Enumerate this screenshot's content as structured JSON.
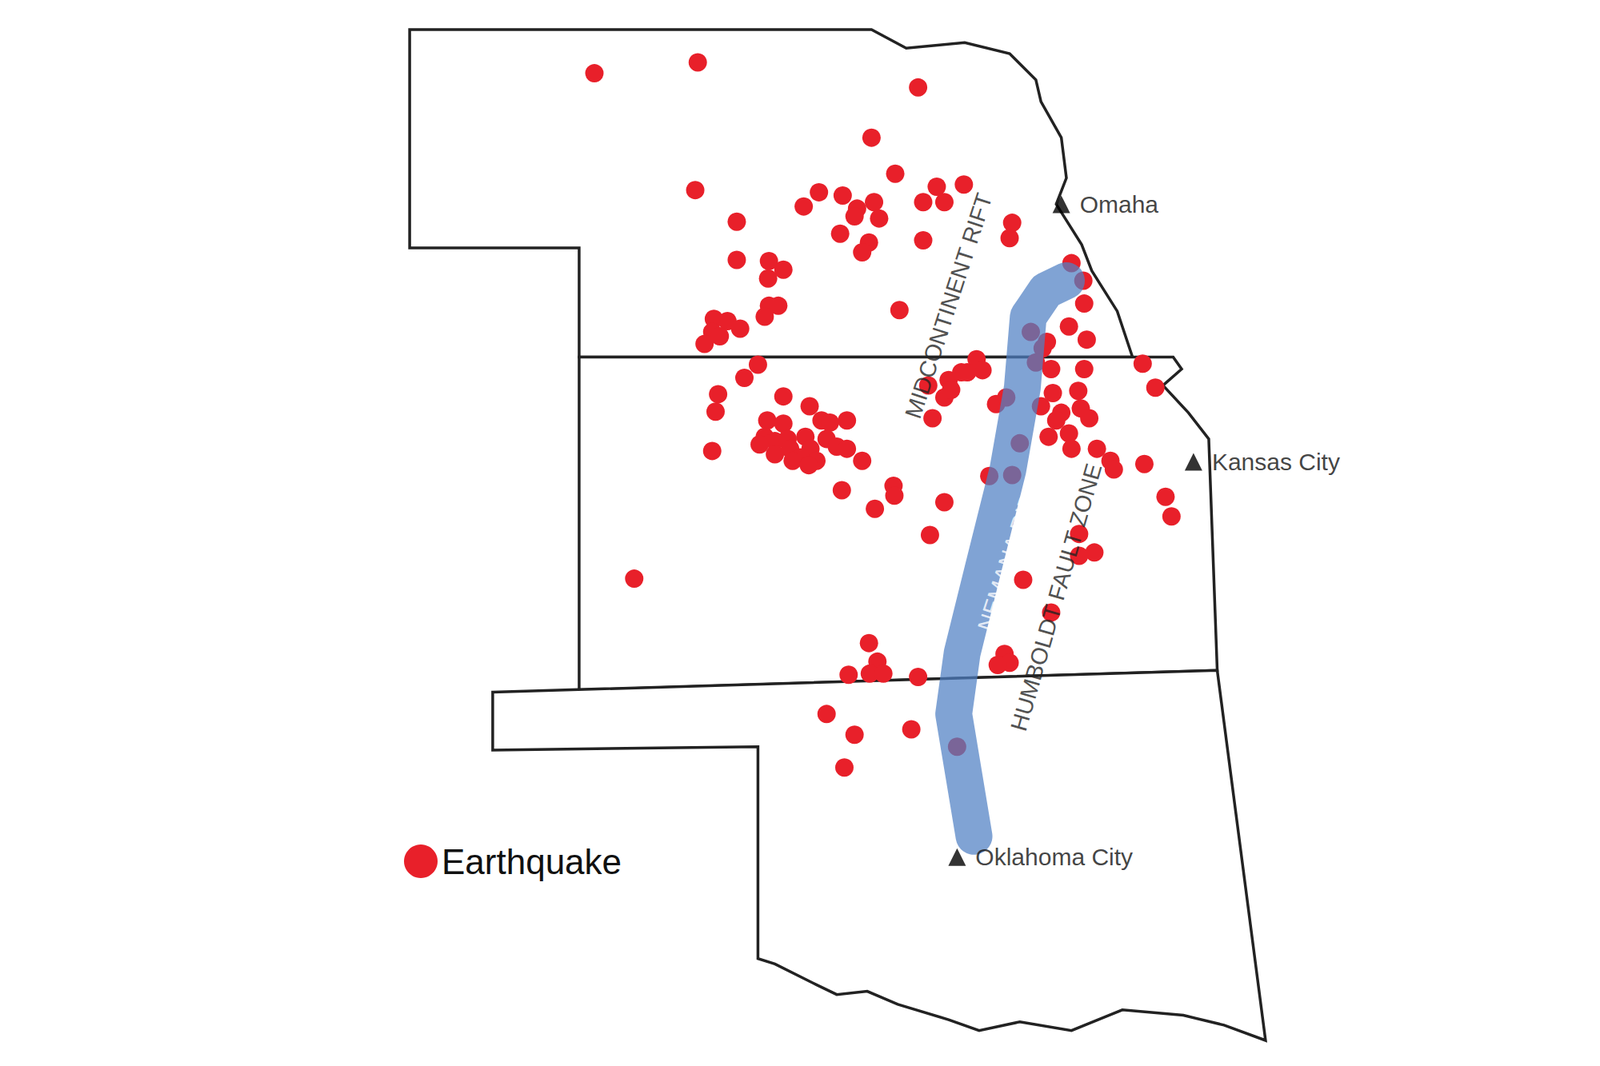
{
  "chart_data": {
    "type": "map",
    "legend": "bottom-left",
    "series": [
      {
        "name": "Earthquake",
        "color": "#e8202a",
        "marker": "circle",
        "points": [
          [
            -101.87,
            42.6
          ],
          [
            -100.65,
            42.7
          ],
          [
            -98.05,
            42.47
          ],
          [
            -98.6,
            42.01
          ],
          [
            -98.32,
            41.68
          ],
          [
            -100.68,
            41.53
          ],
          [
            -99.22,
            41.51
          ],
          [
            -98.94,
            41.48
          ],
          [
            -99.4,
            41.38
          ],
          [
            -98.57,
            41.42
          ],
          [
            -97.83,
            41.56
          ],
          [
            -97.51,
            41.58
          ],
          [
            -97.99,
            41.42
          ],
          [
            -97.74,
            41.42
          ],
          [
            -98.77,
            41.36
          ],
          [
            -98.8,
            41.29
          ],
          [
            -98.51,
            41.27
          ],
          [
            -98.97,
            41.13
          ],
          [
            -98.63,
            41.05
          ],
          [
            -98.71,
            40.96
          ],
          [
            -97.99,
            41.07
          ],
          [
            -96.94,
            41.23
          ],
          [
            -96.97,
            41.09
          ],
          [
            -100.19,
            41.24
          ],
          [
            -99.81,
            40.88
          ],
          [
            -99.64,
            40.8
          ],
          [
            -100.19,
            40.89
          ],
          [
            -99.82,
            40.72
          ],
          [
            -99.81,
            40.47
          ],
          [
            -99.7,
            40.47
          ],
          [
            -99.86,
            40.37
          ],
          [
            -98.27,
            40.43
          ],
          [
            -100.46,
            40.35
          ],
          [
            -100.3,
            40.33
          ],
          [
            -100.15,
            40.26
          ],
          [
            -100.48,
            40.23
          ],
          [
            -100.39,
            40.19
          ],
          [
            -100.57,
            40.12
          ],
          [
            -96.24,
            40.86
          ],
          [
            -96.1,
            40.7
          ],
          [
            -96.09,
            40.49
          ],
          [
            -96.72,
            40.23
          ],
          [
            -96.27,
            40.28
          ],
          [
            -96.06,
            40.16
          ],
          [
            -96.53,
            40.14
          ],
          [
            -96.58,
            40.08
          ],
          [
            -99.94,
            39.93
          ],
          [
            -100.1,
            39.81
          ],
          [
            -100.41,
            39.66
          ],
          [
            -100.44,
            39.5
          ],
          [
            -99.64,
            39.64
          ],
          [
            -99.33,
            39.55
          ],
          [
            -99.83,
            39.42
          ],
          [
            -99.64,
            39.39
          ],
          [
            -99.19,
            39.42
          ],
          [
            -99.09,
            39.4
          ],
          [
            -98.89,
            39.42
          ],
          [
            -99.86,
            39.27
          ],
          [
            -99.74,
            39.23
          ],
          [
            -99.59,
            39.25
          ],
          [
            -99.38,
            39.27
          ],
          [
            -99.13,
            39.25
          ],
          [
            -99.01,
            39.18
          ],
          [
            -99.92,
            39.2
          ],
          [
            -99.56,
            39.16
          ],
          [
            -99.32,
            39.16
          ],
          [
            -99.74,
            39.11
          ],
          [
            -99.44,
            39.08
          ],
          [
            -99.25,
            39.05
          ],
          [
            -99.53,
            39.05
          ],
          [
            -99.34,
            39.01
          ],
          [
            -98.89,
            39.16
          ],
          [
            -98.71,
            39.05
          ],
          [
            -100.48,
            39.14
          ],
          [
            -97.93,
            39.74
          ],
          [
            -97.69,
            39.79
          ],
          [
            -97.54,
            39.86
          ],
          [
            -97.36,
            39.98
          ],
          [
            -97.29,
            39.88
          ],
          [
            -97.47,
            39.86
          ],
          [
            -97.74,
            39.63
          ],
          [
            -97.66,
            39.7
          ],
          [
            -97.88,
            39.44
          ],
          [
            -97.13,
            39.57
          ],
          [
            -97.01,
            39.63
          ],
          [
            -96.66,
            39.95
          ],
          [
            -96.48,
            39.89
          ],
          [
            -96.09,
            39.89
          ],
          [
            -96.46,
            39.67
          ],
          [
            -96.6,
            39.55
          ],
          [
            -96.16,
            39.69
          ],
          [
            -96.13,
            39.53
          ],
          [
            -96.36,
            39.49
          ],
          [
            -96.42,
            39.42
          ],
          [
            -96.51,
            39.27
          ],
          [
            -96.85,
            39.21
          ],
          [
            -96.27,
            39.3
          ],
          [
            -96.03,
            39.44
          ],
          [
            -96.24,
            39.16
          ],
          [
            -95.94,
            39.16
          ],
          [
            -95.78,
            39.05
          ],
          [
            -95.74,
            38.97
          ],
          [
            -95.4,
            39.94
          ],
          [
            -95.25,
            39.72
          ],
          [
            -95.38,
            39.02
          ],
          [
            -95.13,
            38.72
          ],
          [
            -95.06,
            38.54
          ],
          [
            -97.21,
            38.91
          ],
          [
            -96.94,
            38.92
          ],
          [
            -98.95,
            38.78
          ],
          [
            -98.34,
            38.82
          ],
          [
            -98.33,
            38.73
          ],
          [
            -98.56,
            38.61
          ],
          [
            -97.74,
            38.67
          ],
          [
            -97.91,
            38.37
          ],
          [
            -96.15,
            38.38
          ],
          [
            -95.97,
            38.21
          ],
          [
            -96.15,
            38.18
          ],
          [
            -96.48,
            37.66
          ],
          [
            -96.81,
            37.96
          ],
          [
            -101.4,
            37.97
          ],
          [
            -98.63,
            37.38
          ],
          [
            -98.53,
            37.21
          ],
          [
            -98.87,
            37.09
          ],
          [
            -98.62,
            37.1
          ],
          [
            -98.46,
            37.1
          ],
          [
            -98.05,
            37.07
          ],
          [
            -97.03,
            37.28
          ],
          [
            -96.97,
            37.2
          ],
          [
            -97.11,
            37.18
          ],
          [
            -99.13,
            36.73
          ],
          [
            -98.8,
            36.54
          ],
          [
            -98.13,
            36.59
          ],
          [
            -98.92,
            36.24
          ],
          [
            -97.59,
            36.43
          ]
        ]
      }
    ],
    "cities": [
      {
        "name": "Omaha",
        "lon": -96.36,
        "lat": 41.4
      },
      {
        "name": "Kansas City",
        "lon": -94.8,
        "lat": 39.04
      },
      {
        "name": "Oklahoma City",
        "lon": -97.59,
        "lat": 35.42
      }
    ],
    "features": [
      {
        "label": "MIDCONTINENT RIFT"
      },
      {
        "label": "NEMANA RIDGE",
        "color": "#4f7fc4",
        "path": [
          [
            -97.39,
            35.61
          ],
          [
            -97.51,
            36.17
          ],
          [
            -97.63,
            36.73
          ],
          [
            -97.53,
            37.29
          ],
          [
            -97.29,
            38.04
          ],
          [
            -96.99,
            38.97
          ],
          [
            -96.82,
            39.72
          ],
          [
            -96.75,
            40.37
          ],
          [
            -96.54,
            40.61
          ],
          [
            -96.3,
            40.7
          ]
        ]
      },
      {
        "label": "HUMBOLDT FAULT ZONE"
      }
    ],
    "outlines": [
      [
        [
          -104.05,
          43.0
        ],
        [
          -98.6,
          43.0
        ],
        [
          -98.19,
          42.83
        ],
        [
          -97.5,
          42.88
        ],
        [
          -96.97,
          42.78
        ],
        [
          -96.66,
          42.54
        ],
        [
          -96.6,
          42.34
        ],
        [
          -96.36,
          42.01
        ],
        [
          -96.3,
          41.64
        ],
        [
          -96.42,
          41.4
        ],
        [
          -96.12,
          41.03
        ],
        [
          -96.0,
          40.79
        ],
        [
          -95.7,
          40.42
        ],
        [
          -95.52,
          40.0
        ],
        [
          -102.05,
          40.0
        ],
        [
          -102.05,
          41.0
        ],
        [
          -104.05,
          41.0
        ]
      ],
      [
        [
          -102.05,
          40.0
        ],
        [
          -95.52,
          40.0
        ],
        [
          -95.04,
          40.0
        ],
        [
          -94.94,
          39.89
        ],
        [
          -95.16,
          39.74
        ],
        [
          -94.86,
          39.49
        ],
        [
          -94.62,
          39.25
        ],
        [
          -94.52,
          37.13
        ],
        [
          -102.05,
          36.95
        ]
      ],
      [
        [
          -103.07,
          36.93
        ],
        [
          -94.52,
          37.13
        ],
        [
          -93.95,
          33.74
        ],
        [
          -94.44,
          33.88
        ],
        [
          -94.92,
          33.97
        ],
        [
          -95.64,
          34.02
        ],
        [
          -96.24,
          33.83
        ],
        [
          -96.85,
          33.91
        ],
        [
          -97.33,
          33.83
        ],
        [
          -97.69,
          33.93
        ],
        [
          -98.29,
          34.07
        ],
        [
          -98.65,
          34.19
        ],
        [
          -99.01,
          34.16
        ],
        [
          -99.25,
          34.25
        ],
        [
          -99.74,
          34.44
        ],
        [
          -99.94,
          34.49
        ],
        [
          -99.94,
          36.43
        ],
        [
          -103.07,
          36.4
        ]
      ]
    ]
  }
}
